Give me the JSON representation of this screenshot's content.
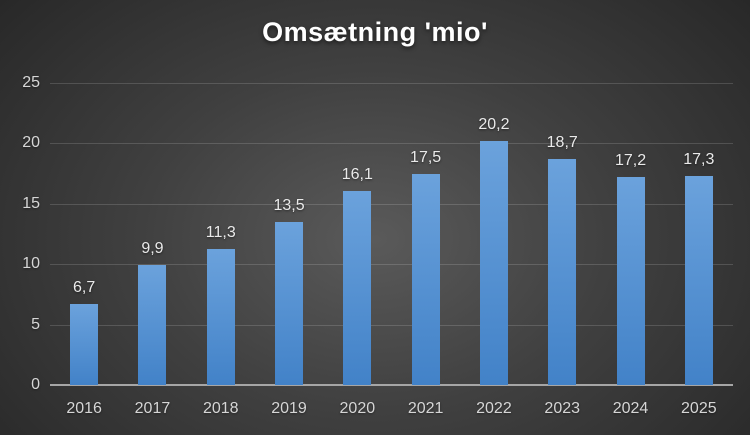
{
  "title": "Omsætning 'mio'",
  "colors": {
    "background_center": "#5a5a5a",
    "background_mid": "#404040",
    "background_edge": "#262626",
    "bar_top": "#6ba2dc",
    "bar_bottom": "#4282c8",
    "gridline": "rgba(255,255,255,0.15)",
    "axis_line": "#a6a6a6",
    "tick_label": "#d6d6d6",
    "data_label": "#eaeaea",
    "title_color": "#ffffff"
  },
  "chart_data": {
    "type": "bar",
    "title": "Omsætning 'mio'",
    "categories": [
      "2016",
      "2017",
      "2018",
      "2019",
      "2020",
      "2021",
      "2022",
      "2023",
      "2024",
      "2025"
    ],
    "values": [
      6.7,
      9.9,
      11.3,
      13.5,
      16.1,
      17.5,
      20.2,
      18.7,
      17.2,
      17.3
    ],
    "value_labels": [
      "6,7",
      "9,9",
      "11,3",
      "13,5",
      "16,1",
      "17,5",
      "20,2",
      "18,7",
      "17,2",
      "17,3"
    ],
    "xlabel": "",
    "ylabel": "",
    "ylim": [
      0,
      25
    ],
    "yticks": [
      25,
      20,
      15,
      10,
      5,
      0
    ],
    "ytick_labels": [
      "25",
      "20",
      "15",
      "10",
      "5",
      "0"
    ],
    "grid": true,
    "legend": false
  }
}
